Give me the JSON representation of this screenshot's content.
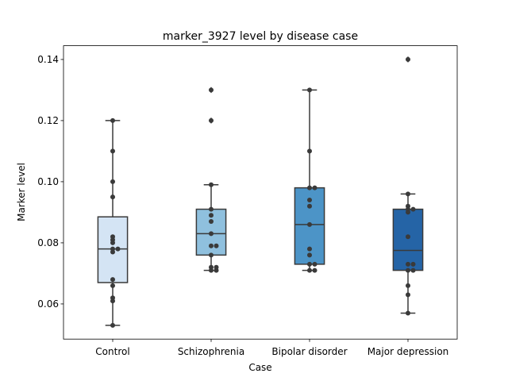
{
  "chart_data": {
    "type": "box",
    "title": "marker_3927 level by disease case",
    "xlabel": "Case",
    "ylabel": "Marker level",
    "ylim": [
      0.0485,
      0.1445
    ],
    "yticks": [
      0.06,
      0.08,
      0.1,
      0.12,
      0.14
    ],
    "ytick_labels": [
      "0.06",
      "0.08",
      "0.10",
      "0.12",
      "0.14"
    ],
    "grid": false,
    "colors": {
      "Control": "#d4e4f4",
      "Schizophrenia": "#8fc0de",
      "Bipolar disorder": "#4c94c7",
      "Major depression": "#2564a6",
      "line": "#3a3a3a",
      "points": "#3a3a3a"
    },
    "categories": [
      "Control",
      "Schizophrenia",
      "Bipolar disorder",
      "Major depression"
    ],
    "boxes": [
      {
        "name": "Control",
        "whislo": 0.053,
        "q1": 0.067,
        "med": 0.078,
        "q3": 0.0885,
        "whishi": 0.12,
        "fliers": [],
        "points": [
          0.12,
          0.11,
          0.1,
          0.095,
          0.082,
          0.081,
          0.08,
          0.078,
          0.078,
          0.077,
          0.068,
          0.066,
          0.062,
          0.061,
          0.053
        ]
      },
      {
        "name": "Schizophrenia",
        "whislo": 0.071,
        "q1": 0.076,
        "med": 0.083,
        "q3": 0.091,
        "whishi": 0.099,
        "fliers": [
          0.13,
          0.12
        ],
        "points": [
          0.13,
          0.12,
          0.099,
          0.091,
          0.089,
          0.087,
          0.083,
          0.079,
          0.079,
          0.076,
          0.072,
          0.072,
          0.071,
          0.071
        ]
      },
      {
        "name": "Bipolar disorder",
        "whislo": 0.071,
        "q1": 0.073,
        "med": 0.086,
        "q3": 0.098,
        "whishi": 0.13,
        "fliers": [],
        "points": [
          0.13,
          0.11,
          0.098,
          0.098,
          0.094,
          0.092,
          0.086,
          0.078,
          0.076,
          0.073,
          0.073,
          0.071,
          0.071
        ]
      },
      {
        "name": "Major depression",
        "whislo": 0.057,
        "q1": 0.071,
        "med": 0.0775,
        "q3": 0.091,
        "whishi": 0.096,
        "fliers": [
          0.14
        ],
        "points": [
          0.14,
          0.096,
          0.092,
          0.091,
          0.091,
          0.09,
          0.082,
          0.073,
          0.073,
          0.071,
          0.071,
          0.066,
          0.063,
          0.057
        ]
      }
    ]
  }
}
